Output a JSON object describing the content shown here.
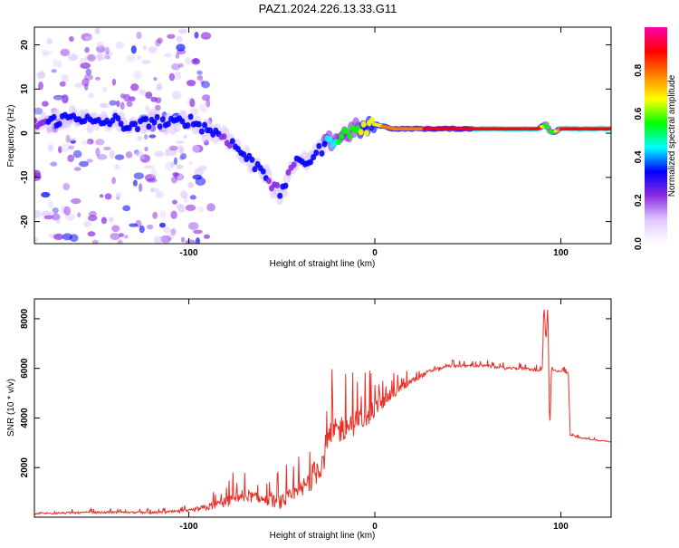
{
  "title": "PAZ1.2024.226.13.33.G11",
  "chart_data": [
    {
      "type": "heatmap",
      "title": "PAZ1.2024.226.13.33.G11",
      "xlabel": "Height of straight line (km)",
      "ylabel": "Frequency (Hz)",
      "xlim": [
        -183,
        127
      ],
      "ylim": [
        -25,
        24
      ],
      "xticks": [
        -100,
        0,
        100
      ],
      "xtick_labels": [
        "-100",
        "0",
        "100"
      ],
      "yticks": [
        -20,
        -10,
        0,
        10,
        20
      ],
      "ytick_labels": [
        "-20",
        "-10",
        "0",
        "10",
        "20"
      ],
      "colorbar": {
        "label": "Normalized spectral amplitude",
        "range": [
          0,
          1
        ],
        "ticks": [
          0.0,
          0.2,
          0.4,
          0.6,
          0.8
        ],
        "tick_labels": [
          "0.0",
          "0.2",
          "0.4",
          "0.6",
          "0.8"
        ],
        "colormap": [
          "#ffffff",
          "#e0c8ff",
          "#8a2be2",
          "#0000ff",
          "#00ffff",
          "#00ff00",
          "#ffff00",
          "#ff8000",
          "#ff0000",
          "#ff00aa"
        ]
      },
      "ridge": {
        "x": [
          -183,
          -170,
          -160,
          -150,
          -140,
          -130,
          -120,
          -110,
          -100,
          -95,
          -90,
          -85,
          -80,
          -75,
          -70,
          -65,
          -60,
          -55,
          -50,
          -45,
          -40,
          -35,
          -30,
          -25,
          -20,
          -15,
          -10,
          -5,
          0,
          10,
          20,
          30,
          40,
          50,
          60,
          70,
          80,
          88,
          92,
          95,
          100,
          110,
          127
        ],
        "freq": [
          2,
          3,
          4,
          2,
          3,
          1,
          3,
          2,
          3,
          2,
          1,
          0,
          -1,
          -3,
          -5,
          -7,
          -8,
          -12,
          -14,
          -7,
          -7,
          -6,
          -4,
          -2,
          -1,
          0,
          1,
          1,
          2,
          1,
          1,
          1,
          1,
          1,
          1,
          1,
          1,
          1,
          2,
          0,
          1,
          1,
          1
        ],
        "amplitude": [
          0.25,
          0.3,
          0.3,
          0.35,
          0.3,
          0.3,
          0.35,
          0.3,
          0.35,
          0.3,
          0.3,
          0.3,
          0.25,
          0.3,
          0.3,
          0.3,
          0.3,
          0.25,
          0.3,
          0.25,
          0.3,
          0.3,
          0.35,
          0.4,
          0.5,
          0.55,
          0.6,
          0.65,
          0.7,
          0.75,
          0.8,
          0.85,
          0.85,
          0.85,
          0.9,
          0.9,
          0.9,
          0.9,
          0.5,
          0.5,
          0.9,
          0.9,
          0.9
        ]
      }
    },
    {
      "type": "line",
      "xlabel": "Height of straight line (km)",
      "ylabel": "SNR (10 * v/v)",
      "xlim": [
        -183,
        127
      ],
      "ylim": [
        0,
        8800
      ],
      "xticks": [
        -100,
        0,
        100
      ],
      "xtick_labels": [
        "-100",
        "0",
        "100"
      ],
      "yticks": [
        2000,
        4000,
        6000,
        8000
      ],
      "ytick_labels": [
        "2000",
        "4000",
        "6000",
        "8000"
      ],
      "series": [
        {
          "color": "#e8302a",
          "x": [
            -183,
            -160,
            -140,
            -120,
            -100,
            -90,
            -80,
            -70,
            -60,
            -50,
            -40,
            -30,
            -25,
            -20,
            -15,
            -10,
            -5,
            0,
            10,
            20,
            30,
            40,
            50,
            60,
            70,
            80,
            88,
            90,
            91,
            92,
            93,
            94,
            95,
            96,
            100,
            104,
            105,
            106,
            110,
            120,
            127
          ],
          "y": [
            150,
            180,
            200,
            180,
            250,
            400,
            600,
            900,
            700,
            600,
            1000,
            2000,
            3000,
            3500,
            3700,
            3800,
            4000,
            4400,
            5000,
            5500,
            5900,
            6100,
            6100,
            6100,
            6000,
            6000,
            5900,
            6000,
            8500,
            7000,
            8600,
            3300,
            6100,
            5900,
            5900,
            5800,
            3300,
            3300,
            3200,
            3100,
            3050
          ],
          "spread": [
            80,
            80,
            80,
            80,
            120,
            300,
            450,
            500,
            400,
            600,
            900,
            1200,
            1400,
            1200,
            1100,
            1000,
            900,
            700,
            450,
            250,
            150,
            120,
            110,
            110,
            110,
            110,
            100,
            100,
            200,
            200,
            200,
            200,
            150,
            100,
            90,
            90,
            60,
            60,
            50,
            50,
            50
          ]
        }
      ]
    }
  ]
}
